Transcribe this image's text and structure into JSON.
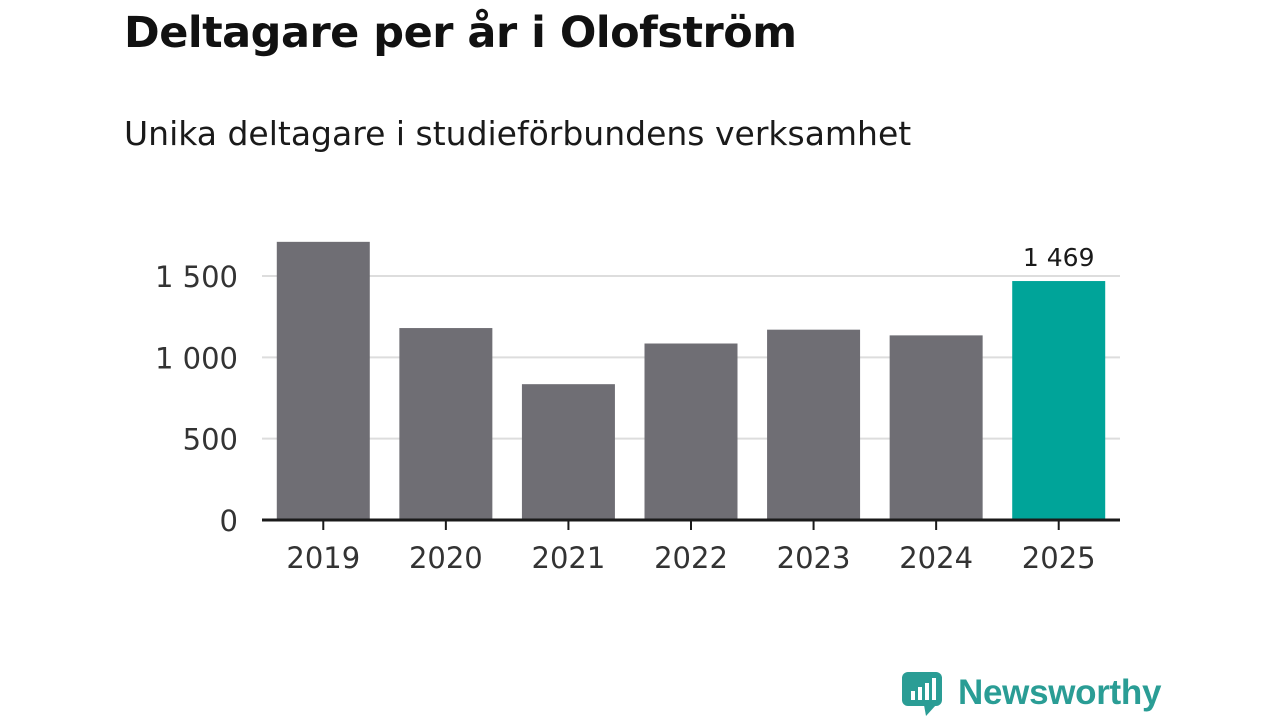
{
  "header": {
    "title": "Deltagare per år i Olofström",
    "subtitle": "Unika deltagare i studieförbundens verksamhet"
  },
  "chart_data": {
    "type": "bar",
    "title": "Deltagare per år i Olofström",
    "subtitle": "Unika deltagare i studieförbundens verksamhet",
    "categories": [
      "2019",
      "2020",
      "2021",
      "2022",
      "2023",
      "2024",
      "2025"
    ],
    "values": [
      1710,
      1180,
      835,
      1085,
      1170,
      1135,
      1469
    ],
    "ylim": [
      0,
      1500
    ],
    "yticks": [
      0,
      500,
      1000,
      1500
    ],
    "ytick_labels": [
      "0",
      "500",
      "1 000",
      "1 500"
    ],
    "xlabel": "",
    "ylabel": "",
    "grid": true,
    "highlight_index": 6,
    "annotations": [
      {
        "category": "2025",
        "label": "1 469"
      }
    ],
    "colors": {
      "bar": "#6f6e74",
      "highlight": "#00a499",
      "grid": "#dddddd",
      "axis": "#1a1a1a"
    }
  },
  "footer": {
    "brand": "Newsworthy",
    "brand_color": "#2a9d95",
    "logo_icon": "bar-chart-speech-bubble-icon"
  }
}
